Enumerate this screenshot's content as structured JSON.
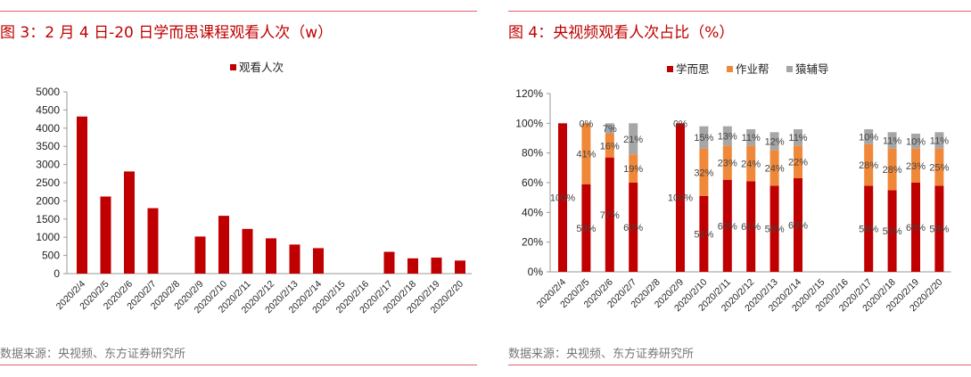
{
  "left": {
    "title": "图 3：2 月 4 日-20 日学而思课程观看人次（w）",
    "source": "数据来源：央视频、东方证券研究所"
  },
  "right": {
    "title": "图 4：央视频观看人次占比（%）",
    "source": "数据来源：央视频、东方证券研究所"
  },
  "chart_data": [
    {
      "type": "bar",
      "categories": [
        "2020/2/4",
        "2020/2/5",
        "2020/2/6",
        "2020/2/7",
        "2020/2/8",
        "2020/2/9",
        "2020/2/10",
        "2020/2/11",
        "2020/2/12",
        "2020/2/13",
        "2020/2/14",
        "2020/2/15",
        "2020/2/16",
        "2020/2/17",
        "2020/2/18",
        "2020/2/19",
        "2020/2/20"
      ],
      "series": [
        {
          "name": "观看人次",
          "values": [
            4320,
            2120,
            2810,
            1800,
            0,
            1020,
            1590,
            1230,
            970,
            800,
            700,
            0,
            0,
            600,
            420,
            440,
            360
          ],
          "color": "#c00000"
        }
      ],
      "ylim": [
        0,
        5000
      ],
      "yticks": [
        0,
        500,
        1000,
        1500,
        2000,
        2500,
        3000,
        3500,
        4000,
        4500,
        5000
      ],
      "legend": "top",
      "grid": false
    },
    {
      "type": "bar",
      "stacked": true,
      "categories": [
        "2020/2/4",
        "2020/2/5",
        "2020/2/6",
        "2020/2/7",
        "2020/2/8",
        "2020/2/9",
        "2020/2/10",
        "2020/2/11",
        "2020/2/12",
        "2020/2/13",
        "2020/2/14",
        "2020/2/15",
        "2020/2/16",
        "2020/2/17",
        "2020/2/18",
        "2020/2/19",
        "2020/2/20"
      ],
      "series": [
        {
          "name": "学而思",
          "color": "#c00000",
          "values": [
            100,
            59,
            77,
            60,
            null,
            100,
            51,
            62,
            61,
            58,
            63,
            null,
            null,
            58,
            55,
            60,
            58
          ]
        },
        {
          "name": "作业帮",
          "color": "#f0883a",
          "values": [
            null,
            41,
            16,
            19,
            null,
            0,
            32,
            23,
            24,
            24,
            22,
            null,
            null,
            28,
            28,
            23,
            25
          ]
        },
        {
          "name": "猿辅导",
          "color": "#a6a6a6",
          "values": [
            null,
            0,
            7,
            21,
            null,
            null,
            15,
            13,
            11,
            12,
            11,
            null,
            null,
            10,
            11,
            10,
            11
          ]
        }
      ],
      "ylim": [
        0,
        120
      ],
      "yticks": [
        "0%",
        "20%",
        "40%",
        "60%",
        "80%",
        "100%",
        "120%"
      ],
      "legend": "top",
      "grid": false,
      "data_labels": true
    }
  ]
}
